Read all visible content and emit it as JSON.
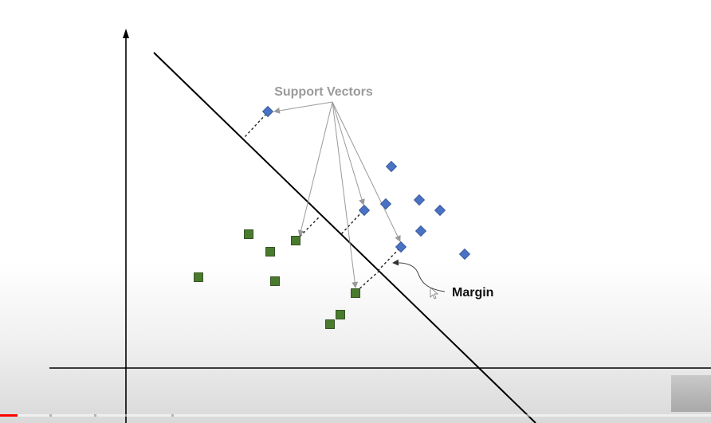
{
  "diagram": {
    "labels": {
      "support_vectors": "Support Vectors",
      "margin": "Margin"
    },
    "colors": {
      "class_a": "#4a72c4",
      "class_b": "#4a7a2e",
      "hyperplane": "#000000",
      "annotation_text_sv": "#9a9a9a",
      "annotation_text_margin": "#111111",
      "arrow": "#999999"
    },
    "class_a_points": [
      {
        "id": "a1",
        "support": true
      },
      {
        "id": "a2",
        "support": false
      },
      {
        "id": "a3",
        "support": false
      },
      {
        "id": "a4",
        "support": true
      },
      {
        "id": "a5",
        "support": false
      },
      {
        "id": "a6",
        "support": false
      },
      {
        "id": "a7",
        "support": false
      },
      {
        "id": "a8",
        "support": true
      },
      {
        "id": "a9",
        "support": false
      }
    ],
    "class_b_points": [
      {
        "id": "b1",
        "support": false
      },
      {
        "id": "b2",
        "support": false
      },
      {
        "id": "b3",
        "support": true
      },
      {
        "id": "b4",
        "support": false
      },
      {
        "id": "b5",
        "support": false
      },
      {
        "id": "b6",
        "support": true
      },
      {
        "id": "b7",
        "support": false
      },
      {
        "id": "b8",
        "support": false
      }
    ]
  },
  "player": {
    "progress_fraction": 0.025
  }
}
